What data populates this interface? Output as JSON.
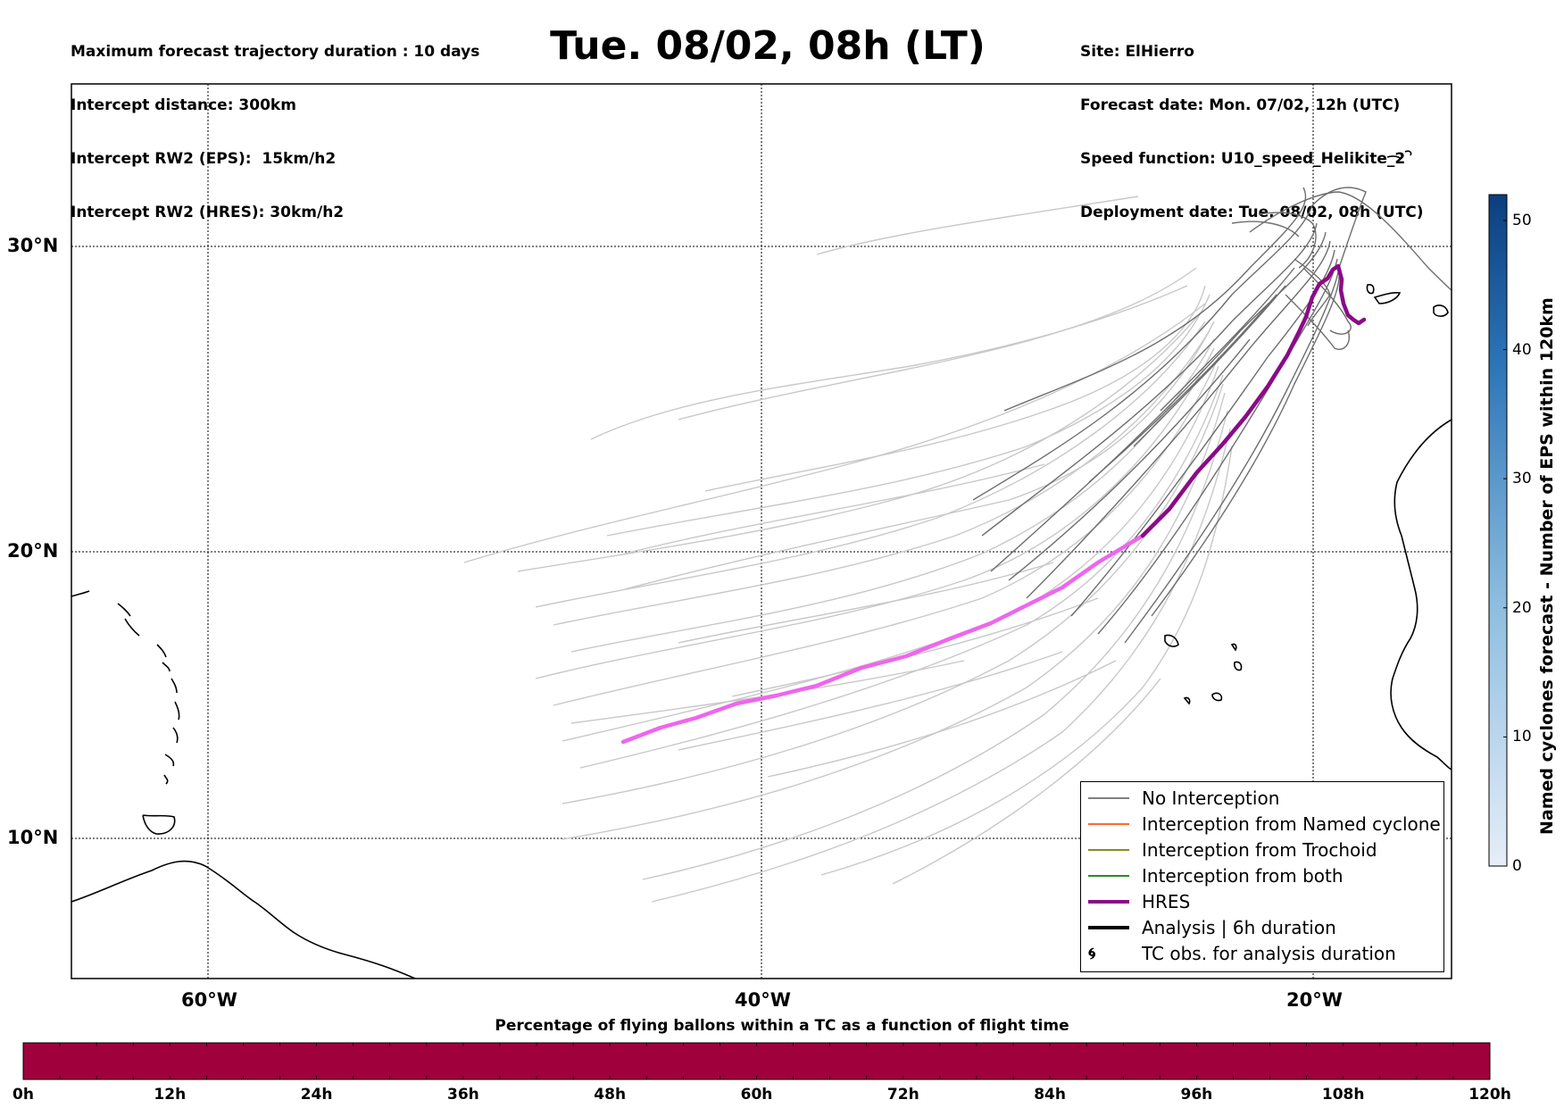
{
  "header": {
    "left_lines": [
      "Maximum forecast trajectory duration : 10 days",
      "Intercept distance: 300km",
      "Intercept RW2 (EPS):  15km/h2",
      "Intercept RW2 (HRES): 30km/h2"
    ],
    "title": "Tue. 08/02, 08h (LT)",
    "right_lines": [
      "Site: ElHierro",
      "Forecast date: Mon. 07/02, 12h (UTC)",
      "Speed function: U10_speed_Helikite_2",
      "Deployment date: Tue. 08/02, 08h (UTC)"
    ]
  },
  "map": {
    "lat_labels": [
      "30°N",
      "20°N",
      "10°N"
    ],
    "lon_labels": [
      "60°W",
      "40°W",
      "20°W"
    ],
    "colors": {
      "no_interception": "#808080",
      "named_cyclone": "#ff6a2a",
      "trochoid": "#8a8a2a",
      "both": "#2a8a2a",
      "hres_dark": "#8b0a87",
      "hres_light": "#ee66ee",
      "analysis": "#000000",
      "trajectory_light": "#c8c8c8"
    }
  },
  "legend": {
    "items": [
      {
        "label": "No Interception",
        "swatch": "no_interception"
      },
      {
        "label": "Interception from Named cyclone",
        "swatch": "named_cyclone"
      },
      {
        "label": "Interception from Trochoid",
        "swatch": "trochoid"
      },
      {
        "label": "Interception from both",
        "swatch": "both"
      },
      {
        "label": "HRES",
        "swatch": "hres_dark"
      },
      {
        "label": "Analysis | 6h duration",
        "swatch": "analysis"
      },
      {
        "label": "TC obs. for analysis duration",
        "swatch": "tc-symbol-icon"
      }
    ]
  },
  "colorbar_right": {
    "title": "Named cyclones forecast - Number of EPS within 120km",
    "ticks": [
      "50",
      "40",
      "30",
      "20",
      "10",
      "0"
    ],
    "tick_values": [
      50,
      40,
      30,
      20,
      10,
      0
    ],
    "range": [
      0,
      52
    ],
    "colors": [
      "#e6eef8",
      "#0b3e7e"
    ]
  },
  "colorbar_bottom": {
    "title": "Percentage of flying ballons within a TC as a function of flight time",
    "ticks": [
      "0h",
      "12h",
      "24h",
      "36h",
      "48h",
      "60h",
      "72h",
      "84h",
      "96h",
      "108h",
      "120h"
    ],
    "color": "#a0003c"
  }
}
